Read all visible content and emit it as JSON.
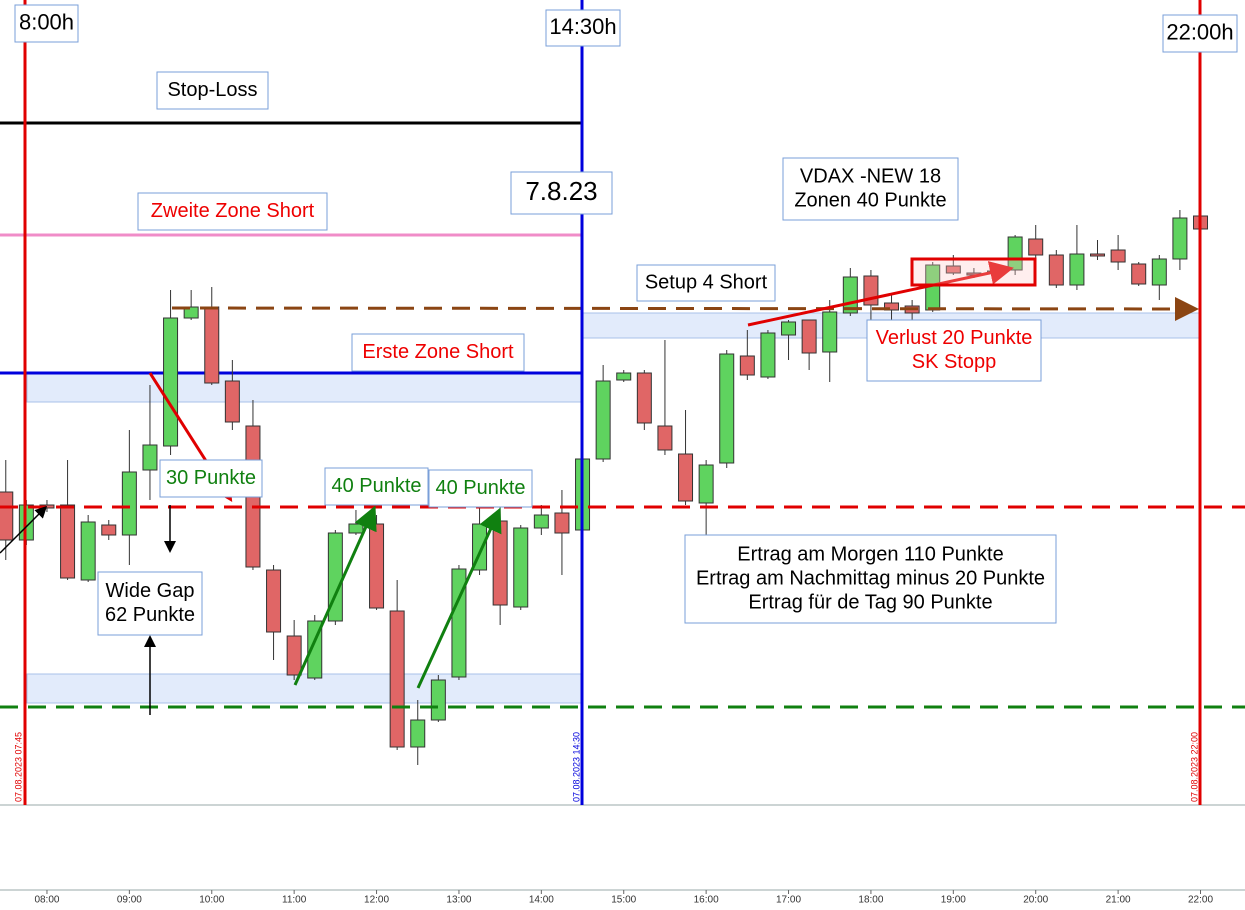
{
  "chart_data": {
    "type": "candlestick",
    "x": [
      7.5,
      7.75,
      8,
      8.25,
      8.5,
      8.75,
      9,
      9.25,
      9.5,
      9.75,
      10,
      10.25,
      10.5,
      10.75,
      11,
      11.25,
      11.5,
      11.75,
      12,
      12.25,
      12.5,
      12.75,
      13,
      13.25,
      13.5,
      13.75,
      14,
      14.25,
      14.5,
      14.75,
      15,
      15.25,
      15.5,
      15.75,
      16,
      16.25,
      16.5,
      16.75,
      17,
      17.25,
      17.5,
      17.75,
      18,
      18.25,
      18.5,
      18.75,
      19,
      19.25,
      19.5,
      19.75,
      20,
      20.25,
      20.5,
      20.75,
      21,
      21.25,
      21.5,
      21.75,
      22
    ],
    "open": [
      313,
      265,
      300,
      300,
      225,
      280,
      270,
      335,
      359,
      487,
      498,
      424,
      379,
      235,
      169,
      127,
      184,
      272,
      281,
      194,
      58,
      85,
      128,
      235,
      284,
      198,
      277,
      292,
      275,
      346,
      425,
      432,
      379,
      351,
      302,
      342,
      449,
      428,
      470,
      485,
      453,
      492,
      529,
      502,
      499,
      495,
      539,
      532,
      532,
      535,
      566,
      550,
      520,
      551,
      555,
      541,
      520,
      546,
      589
    ],
    "high": [
      345,
      305,
      305,
      345,
      290,
      285,
      375,
      420,
      515,
      515,
      518,
      445,
      405,
      240,
      185,
      190,
      275,
      295,
      290,
      225,
      105,
      130,
      240,
      300,
      305,
      280,
      300,
      315,
      350,
      440,
      435,
      435,
      465,
      395,
      345,
      455,
      475,
      475,
      485,
      485,
      505,
      537,
      535,
      510,
      505,
      543,
      550,
      537,
      537,
      570,
      580,
      555,
      580,
      565,
      570,
      543,
      550,
      595,
      591
    ],
    "low": [
      245,
      260,
      293,
      225,
      223,
      265,
      240,
      305,
      350,
      485,
      420,
      375,
      235,
      145,
      125,
      125,
      180,
      270,
      195,
      55,
      40,
      83,
      125,
      230,
      180,
      195,
      270,
      230,
      270,
      343,
      423,
      375,
      350,
      300,
      240,
      337,
      425,
      426,
      445,
      435,
      423,
      489,
      475,
      480,
      485,
      493,
      530,
      527,
      529,
      530,
      540,
      517,
      515,
      545,
      535,
      519,
      505,
      535,
      574
    ],
    "close": [
      265,
      300,
      297,
      227,
      283,
      270,
      333,
      360,
      487,
      498,
      422,
      383,
      238,
      173,
      130,
      184,
      272,
      281,
      197,
      58,
      85,
      125,
      236,
      281,
      200,
      277,
      290,
      272,
      346,
      424,
      432,
      382,
      355,
      304,
      340,
      451,
      430,
      472,
      483,
      452,
      493,
      528,
      500,
      495,
      492,
      540,
      532,
      530,
      534,
      568,
      550,
      520,
      551,
      549,
      543,
      521,
      546,
      587,
      576
    ],
    "up_color": "#5fd35f",
    "down_color": "#e06666",
    "ylim": [
      0,
      805
    ],
    "xlim": [
      7.43,
      22.54
    ],
    "xticks": [
      {
        "value": 8,
        "label": "08:00"
      },
      {
        "value": 9,
        "label": "09:00"
      },
      {
        "value": 10,
        "label": "10:00"
      },
      {
        "value": 11,
        "label": "11:00"
      },
      {
        "value": 12,
        "label": "12:00"
      },
      {
        "value": 13,
        "label": "13:00"
      },
      {
        "value": 14,
        "label": "14:00"
      },
      {
        "value": 15,
        "label": "15:00"
      },
      {
        "value": 16,
        "label": "16:00"
      },
      {
        "value": 17,
        "label": "17:00"
      },
      {
        "value": 18,
        "label": "18:00"
      },
      {
        "value": 19,
        "label": "19:00"
      },
      {
        "value": 20,
        "label": "20:00"
      },
      {
        "value": 21,
        "label": "21:00"
      },
      {
        "value": 22,
        "label": "22:00"
      }
    ]
  },
  "annotations": [
    {
      "lines": [
        "8:00h"
      ],
      "color": "#000000"
    },
    {
      "lines": [
        "14:30h"
      ],
      "color": "#000000"
    },
    {
      "lines": [
        "22:00h"
      ],
      "color": "#000000"
    },
    {
      "lines": [
        "Stop-Loss"
      ],
      "color": "#000000"
    },
    {
      "lines": [
        "Zweite Zone Short"
      ],
      "color": "#ee0000"
    },
    {
      "lines": [
        "7.8.23"
      ],
      "color": "#000000"
    },
    {
      "lines": [
        "VDAX -NEW 18",
        "Zonen 40 Punkte"
      ],
      "color": "#000000"
    },
    {
      "lines": [
        "Setup 4 Short"
      ],
      "color": "#000000"
    },
    {
      "lines": [
        "Erste Zone Short"
      ],
      "color": "#ee0000"
    },
    {
      "lines": [
        "Verlust 20 Punkte",
        "SK Stopp"
      ],
      "color": "#ee0000"
    },
    {
      "lines": [
        "30 Punkte"
      ],
      "color": "#108010"
    },
    {
      "lines": [
        "40 Punkte"
      ],
      "color": "#108010"
    },
    {
      "lines": [
        "40 Punkte"
      ],
      "color": "#108010"
    },
    {
      "lines": [
        "Wide Gap",
        "62 Punkte"
      ],
      "color": "#000000"
    },
    {
      "lines": [
        "Ertrag am Morgen 110 Punkte",
        "Ertrag am Nachmittag minus 20 Punkte",
        "Ertrag für de Tag 90 Punkte"
      ],
      "color": "#000000"
    }
  ],
  "date_labels": [
    "07.08.2023 07:45",
    "07.08.2023 14:30",
    "07.08.2023 22:00"
  ]
}
